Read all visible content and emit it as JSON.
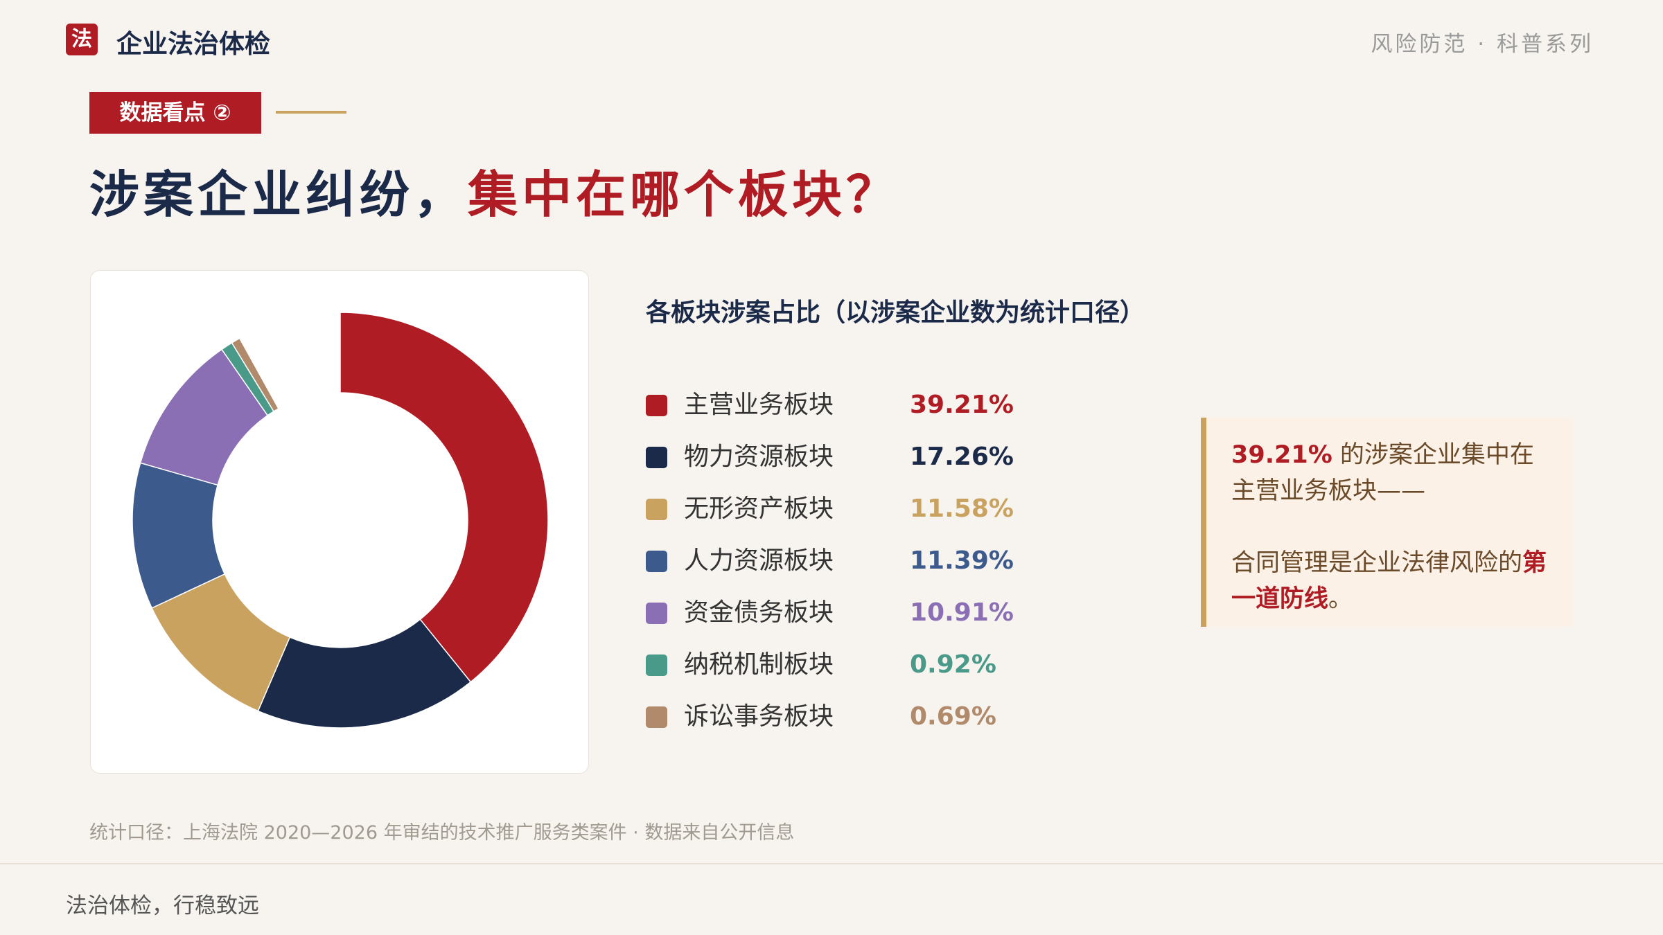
{
  "header": {
    "logo": "法",
    "title": "企业法治体检",
    "series_label": "风险防范 · 科普系列"
  },
  "tag": "数据看点 ②",
  "headline": {
    "part1": "涉案企业纠纷，",
    "part2": "集中在哪个板块？"
  },
  "chart_data": {
    "type": "donut",
    "title": "各板块涉案占比（以涉案企业数为统计口径）",
    "categories": [
      "主营业务板块",
      "物力资源板块",
      "无形资产板块",
      "人力资源板块",
      "资金债务板块",
      "纳税机制板块",
      "诉讼事务板块"
    ],
    "values": [
      39.21,
      17.26,
      11.58,
      11.39,
      10.91,
      0.92,
      0.69
    ],
    "value_labels": [
      "39.21%",
      "17.26%",
      "11.58%",
      "11.39%",
      "10.91%",
      "0.92%",
      "0.69%"
    ],
    "colors": [
      "#b01c24",
      "#1c2a4a",
      "#c9a260",
      "#3d5a8c",
      "#8b6fb5",
      "#4a9a8a",
      "#b08a6a"
    ]
  },
  "callout": {
    "p1": {
      "highlight": "39.21%",
      "text": " 的涉案企业集中在主营业务板块——"
    },
    "p2": {
      "text": "合同管理是企业法律风险的",
      "highlight": "第一道防线",
      "end": "。"
    }
  },
  "footnote": "统计口径：上海法院 2020—2026 年审结的技术推广服务类案件 · 数据来自公开信息",
  "footer": "法治体检，行稳致远"
}
